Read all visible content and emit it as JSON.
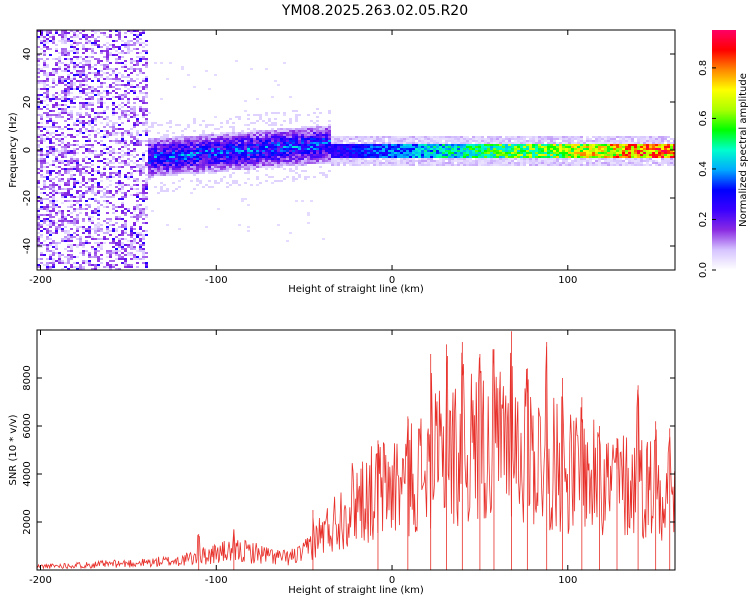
{
  "title": "YM08.2025.263.02.05.R20",
  "chart_data": [
    {
      "type": "heatmap",
      "name": "spectrogram",
      "xlabel": "Height of straight line (km)",
      "ylabel": "Frequency (Hz)",
      "xlim": [
        -202,
        161
      ],
      "ylim": [
        -50,
        50
      ],
      "xticks": [
        -200,
        -100,
        0,
        100
      ],
      "yticks": [
        -40,
        -20,
        0,
        20,
        40
      ],
      "colorbar": {
        "label": "Normalized spectral amplitude",
        "range": [
          0,
          0.95
        ],
        "ticks": [
          0.0,
          0.2,
          0.4,
          0.6,
          0.8
        ],
        "tick_labels": [
          "0.0",
          "0.2",
          "0.4",
          "0.6",
          "0.8"
        ],
        "colors": [
          "#ffffff",
          "#d6c4ff",
          "#8a2be2",
          "#3a00ff",
          "#0000ff",
          "#00aaff",
          "#00ffcc",
          "#00ff00",
          "#aaff00",
          "#ffff00",
          "#ff8800",
          "#ff0000",
          "#ff0066"
        ]
      },
      "description_regions": [
        {
          "x_range": [
            -202,
            -140
          ],
          "freq_range": [
            -50,
            50
          ],
          "amplitude": "0.05-0.15",
          "pattern": "broadband noise"
        },
        {
          "x_range": [
            -140,
            -35
          ],
          "freq_range": [
            -10,
            15
          ],
          "amplitude": "0.1-0.35",
          "pattern": "rising band"
        },
        {
          "x_range": [
            -35,
            161
          ],
          "freq_range": [
            -3,
            3
          ],
          "amplitude": "0.25-0.95",
          "pattern": "narrow band near 0 Hz"
        }
      ]
    },
    {
      "type": "line",
      "name": "snr",
      "xlabel": "Height of straight line (km)",
      "ylabel": "SNR (10 * v/v)",
      "xlim": [
        -202,
        161
      ],
      "ylim": [
        0,
        10000
      ],
      "xticks": [
        -200,
        -100,
        0,
        100
      ],
      "yticks": [
        2000,
        4000,
        6000,
        8000
      ],
      "color": "#e8302a",
      "series": [
        {
          "name": "SNR",
          "x": [
            -200,
            -180,
            -160,
            -140,
            -130,
            -120,
            -110,
            -100,
            -90,
            -80,
            -70,
            -60,
            -50,
            -45,
            -40,
            -35,
            -30,
            -25,
            -20,
            -15,
            -10,
            -5,
            0,
            5,
            10,
            15,
            20,
            25,
            30,
            35,
            40,
            45,
            50,
            55,
            60,
            65,
            70,
            75,
            80,
            85,
            90,
            95,
            100,
            110,
            120,
            130,
            140,
            150,
            160
          ],
          "y": [
            150,
            200,
            250,
            300,
            350,
            400,
            550,
            700,
            800,
            750,
            600,
            500,
            700,
            1200,
            1500,
            1800,
            2200,
            2600,
            3000,
            3100,
            3200,
            3400,
            3500,
            3700,
            3900,
            4000,
            4300,
            4500,
            4600,
            4800,
            4900,
            5100,
            5100,
            5000,
            5200,
            5300,
            5000,
            4900,
            4800,
            4600,
            4400,
            4300,
            4100,
            3900,
            3700,
            3600,
            3500,
            3500,
            3400
          ]
        }
      ],
      "peaks": [
        {
          "x": -110,
          "y": 1500
        },
        {
          "x": -90,
          "y": 1700
        },
        {
          "x": -45,
          "y": 2500
        },
        {
          "x": -8,
          "y": 5400
        },
        {
          "x": 9,
          "y": 6400
        },
        {
          "x": 22,
          "y": 9000
        },
        {
          "x": 31,
          "y": 9400
        },
        {
          "x": 40,
          "y": 9500
        },
        {
          "x": 50,
          "y": 9000
        },
        {
          "x": 58,
          "y": 9200
        },
        {
          "x": 68,
          "y": 9950
        },
        {
          "x": 77,
          "y": 8400
        },
        {
          "x": 88,
          "y": 9500
        },
        {
          "x": 97,
          "y": 8000
        },
        {
          "x": 108,
          "y": 7200
        },
        {
          "x": 118,
          "y": 6000
        },
        {
          "x": 128,
          "y": 5500
        },
        {
          "x": 140,
          "y": 7700
        },
        {
          "x": 150,
          "y": 6200
        },
        {
          "x": 158,
          "y": 5900
        }
      ]
    }
  ]
}
